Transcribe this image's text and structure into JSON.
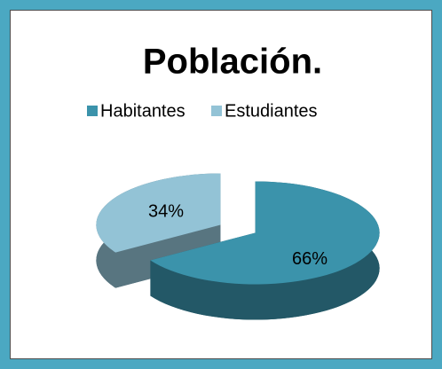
{
  "chart_data": {
    "type": "pie",
    "title": "Población.",
    "categories": [
      "Habitantes",
      "Estudiantes"
    ],
    "values": [
      66,
      34
    ],
    "value_labels": [
      "66%",
      "34%"
    ],
    "colors": [
      "#3b93ab",
      "#93c3d6"
    ],
    "legend": "top"
  }
}
